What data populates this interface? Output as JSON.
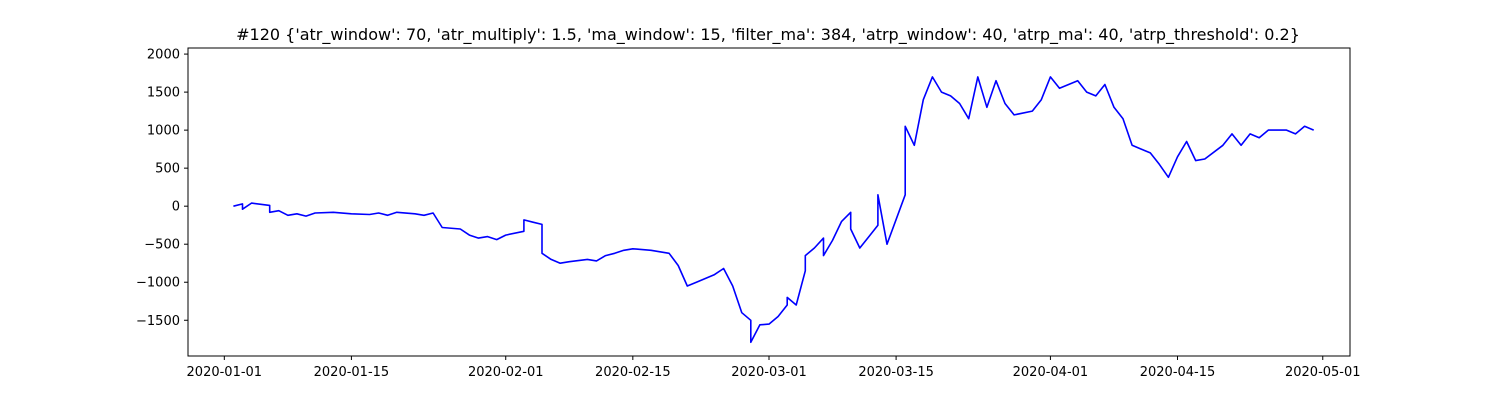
{
  "chart_data": {
    "type": "line",
    "title": "#120 {'atr_window': 70, 'atr_multiply': 1.5, 'ma_window': 15, 'filter_ma': 384, 'atrp_window': 40, 'atrp_ma': 40, 'atrp_threshold': 0.2}",
    "xlabel": "",
    "ylabel": "",
    "x_scale": "date",
    "xlim": [
      "2019-12-28",
      "2020-05-04"
    ],
    "ylim": [
      -1970,
      2080
    ],
    "x_ticks": [
      {
        "value": "2020-01-01",
        "label": "2020-01-01"
      },
      {
        "value": "2020-01-15",
        "label": "2020-01-15"
      },
      {
        "value": "2020-02-01",
        "label": "2020-02-01"
      },
      {
        "value": "2020-02-15",
        "label": "2020-02-15"
      },
      {
        "value": "2020-03-01",
        "label": "2020-03-01"
      },
      {
        "value": "2020-03-15",
        "label": "2020-03-15"
      },
      {
        "value": "2020-04-01",
        "label": "2020-04-01"
      },
      {
        "value": "2020-04-15",
        "label": "2020-04-15"
      },
      {
        "value": "2020-05-01",
        "label": "2020-05-01"
      }
    ],
    "y_ticks": [
      {
        "value": 2000,
        "label": "2000"
      },
      {
        "value": 1500,
        "label": "1500"
      },
      {
        "value": 1000,
        "label": "1000"
      },
      {
        "value": 500,
        "label": "500"
      },
      {
        "value": 0,
        "label": "0"
      },
      {
        "value": -500,
        "label": "−500"
      },
      {
        "value": -1000,
        "label": "−1000"
      },
      {
        "value": -1500,
        "label": "−1500"
      }
    ],
    "grid": false,
    "legend": "none",
    "series": [
      {
        "color": "#0000ff",
        "points": [
          [
            "2020-01-02",
            0
          ],
          [
            "2020-01-03",
            30
          ],
          [
            "2020-01-03",
            -40
          ],
          [
            "2020-01-04",
            40
          ],
          [
            "2020-01-06",
            10
          ],
          [
            "2020-01-06",
            -80
          ],
          [
            "2020-01-07",
            -60
          ],
          [
            "2020-01-08",
            -120
          ],
          [
            "2020-01-09",
            -100
          ],
          [
            "2020-01-10",
            -130
          ],
          [
            "2020-01-11",
            -90
          ],
          [
            "2020-01-13",
            -80
          ],
          [
            "2020-01-15",
            -100
          ],
          [
            "2020-01-17",
            -110
          ],
          [
            "2020-01-18",
            -90
          ],
          [
            "2020-01-19",
            -120
          ],
          [
            "2020-01-20",
            -80
          ],
          [
            "2020-01-22",
            -100
          ],
          [
            "2020-01-23",
            -120
          ],
          [
            "2020-01-24",
            -90
          ],
          [
            "2020-01-25",
            -280
          ],
          [
            "2020-01-27",
            -300
          ],
          [
            "2020-01-28",
            -380
          ],
          [
            "2020-01-29",
            -420
          ],
          [
            "2020-01-30",
            -400
          ],
          [
            "2020-01-31",
            -440
          ],
          [
            "2020-02-01",
            -380
          ],
          [
            "2020-02-03",
            -330
          ],
          [
            "2020-02-03",
            -180
          ],
          [
            "2020-02-04",
            -210
          ],
          [
            "2020-02-05",
            -240
          ],
          [
            "2020-02-05",
            -620
          ],
          [
            "2020-02-06",
            -700
          ],
          [
            "2020-02-07",
            -750
          ],
          [
            "2020-02-08",
            -730
          ],
          [
            "2020-02-10",
            -700
          ],
          [
            "2020-02-11",
            -720
          ],
          [
            "2020-02-12",
            -650
          ],
          [
            "2020-02-13",
            -620
          ],
          [
            "2020-02-14",
            -580
          ],
          [
            "2020-02-15",
            -560
          ],
          [
            "2020-02-17",
            -580
          ],
          [
            "2020-02-19",
            -620
          ],
          [
            "2020-02-20",
            -780
          ],
          [
            "2020-02-21",
            -1050
          ],
          [
            "2020-02-22",
            -1000
          ],
          [
            "2020-02-24",
            -900
          ],
          [
            "2020-02-25",
            -820
          ],
          [
            "2020-02-26",
            -1050
          ],
          [
            "2020-02-27",
            -1400
          ],
          [
            "2020-02-28",
            -1500
          ],
          [
            "2020-02-28",
            -1790
          ],
          [
            "2020-02-29",
            -1560
          ],
          [
            "2020-03-01",
            -1550
          ],
          [
            "2020-03-02",
            -1450
          ],
          [
            "2020-03-03",
            -1300
          ],
          [
            "2020-03-03",
            -1200
          ],
          [
            "2020-03-04",
            -1300
          ],
          [
            "2020-03-05",
            -850
          ],
          [
            "2020-03-05",
            -650
          ],
          [
            "2020-03-06",
            -550
          ],
          [
            "2020-03-07",
            -420
          ],
          [
            "2020-03-07",
            -650
          ],
          [
            "2020-03-08",
            -450
          ],
          [
            "2020-03-09",
            -200
          ],
          [
            "2020-03-10",
            -80
          ],
          [
            "2020-03-10",
            -300
          ],
          [
            "2020-03-11",
            -550
          ],
          [
            "2020-03-12",
            -400
          ],
          [
            "2020-03-13",
            -250
          ],
          [
            "2020-03-13",
            150
          ],
          [
            "2020-03-14",
            -500
          ],
          [
            "2020-03-16",
            150
          ],
          [
            "2020-03-16",
            1050
          ],
          [
            "2020-03-17",
            800
          ],
          [
            "2020-03-18",
            1400
          ],
          [
            "2020-03-19",
            1700
          ],
          [
            "2020-03-20",
            1500
          ],
          [
            "2020-03-21",
            1450
          ],
          [
            "2020-03-22",
            1350
          ],
          [
            "2020-03-23",
            1150
          ],
          [
            "2020-03-24",
            1700
          ],
          [
            "2020-03-25",
            1300
          ],
          [
            "2020-03-26",
            1650
          ],
          [
            "2020-03-27",
            1350
          ],
          [
            "2020-03-28",
            1200
          ],
          [
            "2020-03-30",
            1250
          ],
          [
            "2020-03-31",
            1400
          ],
          [
            "2020-04-01",
            1700
          ],
          [
            "2020-04-02",
            1550
          ],
          [
            "2020-04-03",
            1600
          ],
          [
            "2020-04-04",
            1650
          ],
          [
            "2020-04-05",
            1500
          ],
          [
            "2020-04-06",
            1450
          ],
          [
            "2020-04-07",
            1600
          ],
          [
            "2020-04-08",
            1300
          ],
          [
            "2020-04-09",
            1150
          ],
          [
            "2020-04-10",
            800
          ],
          [
            "2020-04-11",
            750
          ],
          [
            "2020-04-12",
            700
          ],
          [
            "2020-04-13",
            550
          ],
          [
            "2020-04-14",
            380
          ],
          [
            "2020-04-15",
            650
          ],
          [
            "2020-04-16",
            850
          ],
          [
            "2020-04-17",
            600
          ],
          [
            "2020-04-18",
            620
          ],
          [
            "2020-04-20",
            800
          ],
          [
            "2020-04-21",
            950
          ],
          [
            "2020-04-22",
            800
          ],
          [
            "2020-04-23",
            950
          ],
          [
            "2020-04-24",
            900
          ],
          [
            "2020-04-25",
            1000
          ],
          [
            "2020-04-27",
            1000
          ],
          [
            "2020-04-28",
            950
          ],
          [
            "2020-04-29",
            1050
          ],
          [
            "2020-04-30",
            1000
          ]
        ]
      }
    ]
  }
}
